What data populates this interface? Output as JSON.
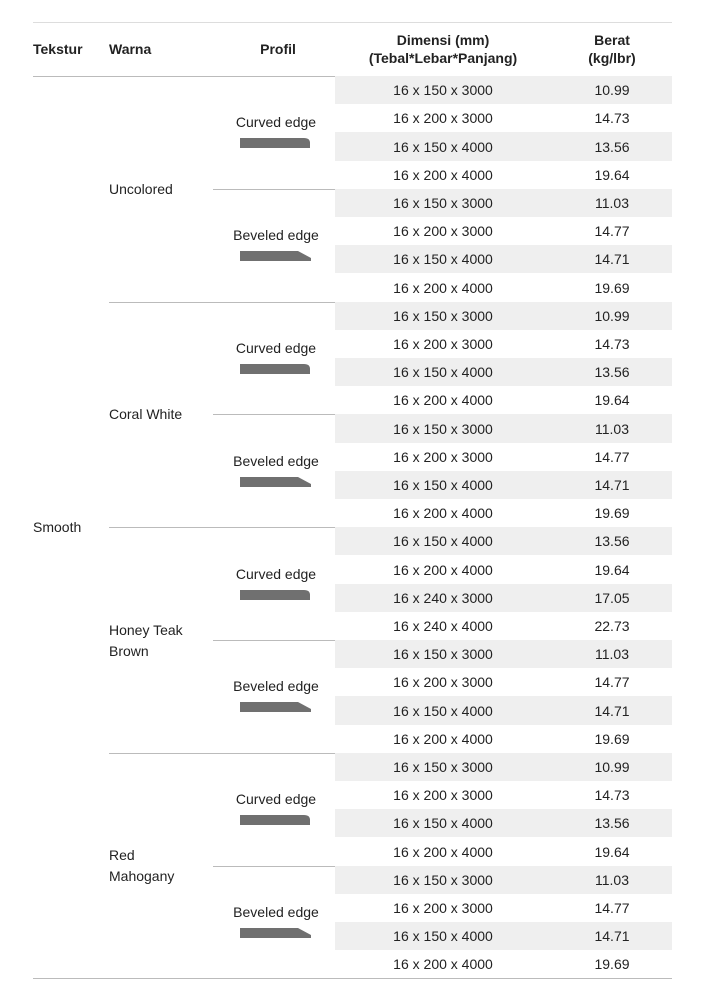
{
  "header": {
    "tekstur": "Tekstur",
    "warna": "Warna",
    "profil": "Profil",
    "dimensi": [
      "Dimensi (mm)",
      "(Tebal*Lebar*Panjang)"
    ],
    "berat": [
      "Berat",
      "(kg/lbr)"
    ]
  },
  "tekstur": "Smooth",
  "colors": [
    {
      "name": [
        "Uncolored"
      ],
      "profiles": [
        {
          "name": "Curved edge",
          "rows": [
            [
              "16 x 150 x 3000",
              "10.99"
            ],
            [
              "16 x 200 x 3000",
              "14.73"
            ],
            [
              "16 x 150 x 4000",
              "13.56"
            ],
            [
              "16 x 200 x 4000",
              "19.64"
            ]
          ]
        },
        {
          "name": "Beveled edge",
          "rows": [
            [
              "16 x 150 x 3000",
              "11.03"
            ],
            [
              "16 x 200 x 3000",
              "14.77"
            ],
            [
              "16 x 150 x 4000",
              "14.71"
            ],
            [
              "16 x 200 x 4000",
              "19.69"
            ]
          ]
        }
      ]
    },
    {
      "name": [
        "Coral White"
      ],
      "profiles": [
        {
          "name": "Curved edge",
          "rows": [
            [
              "16 x 150 x 3000",
              "10.99"
            ],
            [
              "16 x 200 x 3000",
              "14.73"
            ],
            [
              "16 x 150 x 4000",
              "13.56"
            ],
            [
              "16 x 200 x 4000",
              "19.64"
            ]
          ]
        },
        {
          "name": "Beveled edge",
          "rows": [
            [
              "16 x 150 x 3000",
              "11.03"
            ],
            [
              "16 x 200 x 3000",
              "14.77"
            ],
            [
              "16 x 150 x 4000",
              "14.71"
            ],
            [
              "16 x 200 x 4000",
              "19.69"
            ]
          ]
        }
      ]
    },
    {
      "name": [
        "Honey Teak",
        "Brown"
      ],
      "profiles": [
        {
          "name": "Curved edge",
          "rows": [
            [
              "16 x 150 x 4000",
              "13.56"
            ],
            [
              "16 x 200 x 4000",
              "19.64"
            ],
            [
              "16 x 240 x 3000",
              "17.05"
            ],
            [
              "16 x 240 x 4000",
              "22.73"
            ]
          ]
        },
        {
          "name": "Beveled edge",
          "rows": [
            [
              "16 x 150 x 3000",
              "11.03"
            ],
            [
              "16 x 200 x 3000",
              "14.77"
            ],
            [
              "16 x 150 x 4000",
              "14.71"
            ],
            [
              "16 x 200 x 4000",
              "19.69"
            ]
          ]
        }
      ]
    },
    {
      "name": [
        "Red",
        "Mahogany"
      ],
      "profiles": [
        {
          "name": "Curved edge",
          "rows": [
            [
              "16 x 150 x 3000",
              "10.99"
            ],
            [
              "16 x 200 x 3000",
              "14.73"
            ],
            [
              "16 x 150 x 4000",
              "13.56"
            ],
            [
              "16 x 200 x 4000",
              "19.64"
            ]
          ]
        },
        {
          "name": "Beveled edge",
          "rows": [
            [
              "16 x 150 x 3000",
              "11.03"
            ],
            [
              "16 x 200 x 3000",
              "14.77"
            ],
            [
              "16 x 150 x 4000",
              "14.71"
            ],
            [
              "16 x 200 x 4000",
              "19.69"
            ]
          ]
        }
      ]
    }
  ]
}
